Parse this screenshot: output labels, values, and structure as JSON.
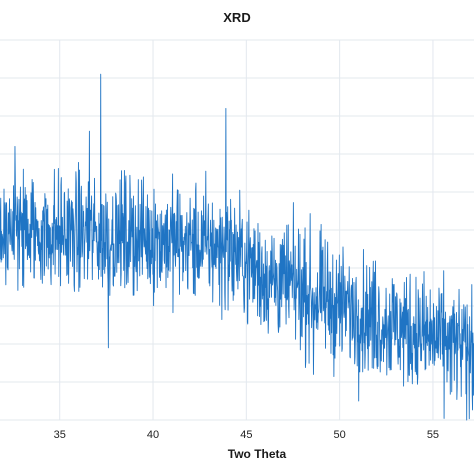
{
  "chart_data": {
    "type": "line",
    "title": "XRD",
    "xlabel": "Two Theta",
    "ylabel": "",
    "xlim": [
      31.8,
      57.2
    ],
    "ylim": [
      0,
      100
    ],
    "x_ticks": [
      35,
      40,
      45,
      50,
      55
    ],
    "y_grid_count": 10,
    "grid": true,
    "legend": "none",
    "series": [
      {
        "color": "#1f74c4",
        "baseline": {
          "x": [
            31.8,
            36,
            40,
            44,
            46,
            50,
            54,
            57.2
          ],
          "y": [
            50,
            49,
            48,
            45,
            38,
            30,
            23,
            18
          ]
        },
        "noise_amplitude": 11,
        "point_count": 1300,
        "spikes": [
          {
            "x": 37.2,
            "y": 91
          },
          {
            "x": 43.9,
            "y": 82
          },
          {
            "x": 36.6,
            "y": 76
          },
          {
            "x": 32.6,
            "y": 72
          },
          {
            "x": 56.8,
            "y": 0
          },
          {
            "x": 37.6,
            "y": 19
          },
          {
            "x": 48.6,
            "y": 12
          }
        ]
      }
    ]
  }
}
